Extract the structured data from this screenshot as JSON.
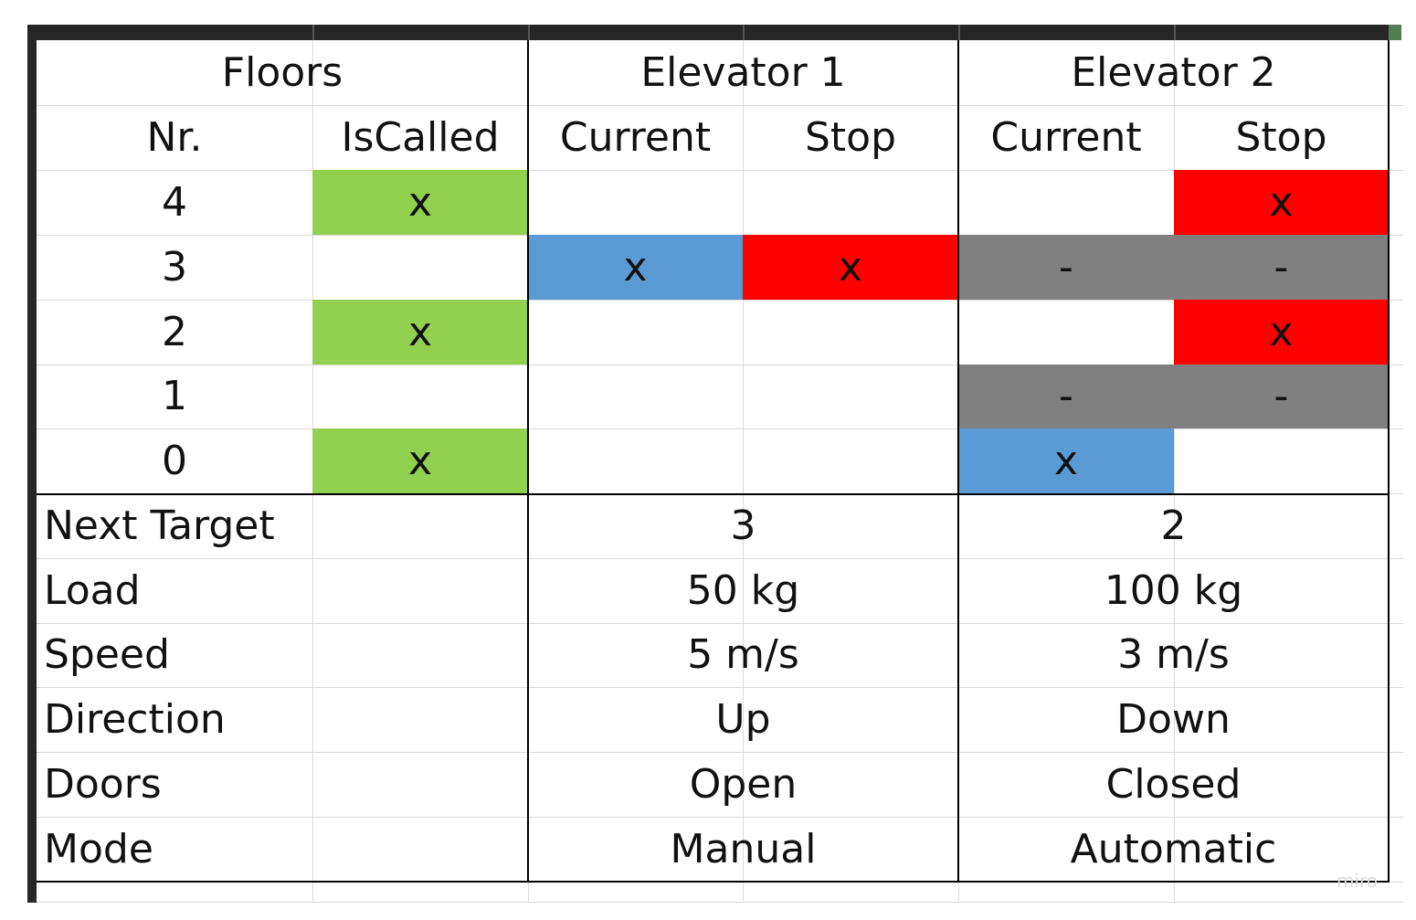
{
  "colors": {
    "called": "#92d050",
    "current": "#5b9bd5",
    "stop": "#ff0000",
    "blocked": "#808080"
  },
  "headers": {
    "floors": "Floors",
    "elevator1": "Elevator 1",
    "elevator2": "Elevator 2",
    "nr": "Nr.",
    "is_called": "IsCalled",
    "e1_current": "Current",
    "e1_stop": "Stop",
    "e2_current": "Current",
    "e2_stop": "Stop"
  },
  "floor_rows": [
    {
      "nr": "4",
      "is_called": "x",
      "e1_current": "",
      "e1_stop": "",
      "e2_current": "",
      "e2_stop": "x"
    },
    {
      "nr": "3",
      "is_called": "",
      "e1_current": "x",
      "e1_stop": "x",
      "e2_current": "-",
      "e2_stop": "-"
    },
    {
      "nr": "2",
      "is_called": "x",
      "e1_current": "",
      "e1_stop": "",
      "e2_current": "",
      "e2_stop": "x"
    },
    {
      "nr": "1",
      "is_called": "",
      "e1_current": "",
      "e1_stop": "",
      "e2_current": "-",
      "e2_stop": "-"
    },
    {
      "nr": "0",
      "is_called": "x",
      "e1_current": "",
      "e1_stop": "",
      "e2_current": "x",
      "e2_stop": ""
    }
  ],
  "status_rows": [
    {
      "label": "Next Target",
      "e1": "3",
      "e2": "2"
    },
    {
      "label": "Load",
      "e1": "50 kg",
      "e2": "100 kg"
    },
    {
      "label": "Speed",
      "e1": "5 m/s",
      "e2": "3 m/s"
    },
    {
      "label": "Direction",
      "e1": "Up",
      "e2": "Down"
    },
    {
      "label": "Doors",
      "e1": "Open",
      "e2": "Closed"
    },
    {
      "label": "Mode",
      "e1": "Manual",
      "e2": "Automatic"
    }
  ],
  "watermark": "miro"
}
